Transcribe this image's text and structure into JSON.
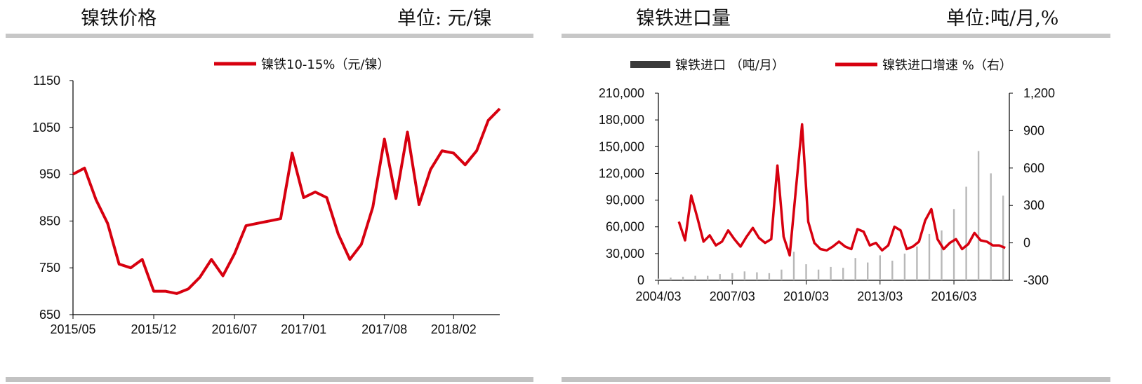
{
  "left": {
    "title": "镍铁价格",
    "unit": "单位:  元/镍"
  },
  "right": {
    "title": "镍铁进口量",
    "unit": "单位:吨/月,%"
  },
  "colors": {
    "red": "#d7000f",
    "bar": "#b8b8b8",
    "legend_bar": "#3a3a3a",
    "rule": "#c7c7c7"
  },
  "chart_data": [
    {
      "type": "line",
      "title": "",
      "legend": [
        "镍铁10-15%（元/镍）"
      ],
      "ylim": [
        650,
        1150
      ],
      "yticks": [
        "650",
        "750",
        "850",
        "950",
        "1050",
        "1150"
      ],
      "xticks": [
        "2015/05",
        "2015/12",
        "2016/07",
        "2017/01",
        "2017/08",
        "2018/02"
      ],
      "series": [
        {
          "name": "镍铁10-15%（元/镍）",
          "x": [
            "2015/05",
            "2015/06",
            "2015/07",
            "2015/08",
            "2015/09",
            "2015/10",
            "2015/11",
            "2015/12",
            "2016/01",
            "2016/02",
            "2016/03",
            "2016/04",
            "2016/05",
            "2016/06",
            "2016/07",
            "2016/08",
            "2016/09",
            "2016/10",
            "2016/11",
            "2016/12",
            "2017/01",
            "2017/02",
            "2017/03",
            "2017/04",
            "2017/05",
            "2017/06",
            "2017/07",
            "2017/08",
            "2017/09",
            "2017/10",
            "2017/11",
            "2017/12",
            "2018/01",
            "2018/02",
            "2018/03",
            "2018/04",
            "2018/05",
            "2018/06"
          ],
          "values": [
            950,
            963,
            895,
            845,
            758,
            750,
            768,
            700,
            700,
            695,
            705,
            730,
            768,
            733,
            780,
            840,
            845,
            850,
            855,
            995,
            900,
            912,
            900,
            822,
            768,
            800,
            880,
            1025,
            898,
            1040,
            885,
            960,
            1000,
            995,
            970,
            1000,
            1065,
            1090
          ]
        }
      ]
    },
    {
      "type": "bar+line",
      "title": "",
      "legend": [
        "镍铁进口 （吨/月）",
        "镍铁进口增速 %（右）"
      ],
      "ylim_left": [
        0,
        210000
      ],
      "ylim_right": [
        -300,
        1200
      ],
      "yticks_left": [
        "0",
        "30,000",
        "60,000",
        "90,000",
        "120,000",
        "150,000",
        "180,000",
        "210,000"
      ],
      "yticks_right": [
        "-300",
        "0",
        "300",
        "600",
        "900",
        "1,200"
      ],
      "xticks": [
        "2004/03",
        "2007/03",
        "2010/03",
        "2013/03",
        "2016/03"
      ],
      "series": [
        {
          "name": "镍铁进口 （吨/月）",
          "type": "bar",
          "x": [
            "2004/03",
            "2004/09",
            "2005/03",
            "2005/09",
            "2006/03",
            "2006/09",
            "2007/03",
            "2007/09",
            "2008/03",
            "2008/09",
            "2009/03",
            "2009/09",
            "2010/03",
            "2010/09",
            "2011/03",
            "2011/09",
            "2012/03",
            "2012/09",
            "2013/03",
            "2013/09",
            "2014/03",
            "2014/09",
            "2015/03",
            "2015/09",
            "2016/03",
            "2016/09",
            "2017/03",
            "2017/09",
            "2018/03"
          ],
          "values": [
            2000,
            3000,
            4000,
            5000,
            5000,
            7000,
            8000,
            10000,
            9000,
            8000,
            12000,
            32000,
            18000,
            12000,
            15000,
            14000,
            25000,
            20000,
            28000,
            22000,
            30000,
            38000,
            52000,
            56000,
            80000,
            105000,
            145000,
            120000,
            95000
          ]
        },
        {
          "name": "镍铁进口增速 %（右）",
          "type": "line",
          "axis": "right",
          "x": [
            "2005/01",
            "2005/04",
            "2005/07",
            "2005/10",
            "2006/01",
            "2006/04",
            "2006/07",
            "2006/10",
            "2007/01",
            "2007/04",
            "2007/07",
            "2007/10",
            "2008/01",
            "2008/04",
            "2008/07",
            "2008/10",
            "2009/01",
            "2009/04",
            "2009/07",
            "2009/10",
            "2010/01",
            "2010/04",
            "2010/07",
            "2010/10",
            "2011/01",
            "2011/04",
            "2011/07",
            "2011/10",
            "2012/01",
            "2012/04",
            "2012/07",
            "2012/10",
            "2013/01",
            "2013/04",
            "2013/07",
            "2013/10",
            "2014/01",
            "2014/04",
            "2014/07",
            "2014/10",
            "2015/01",
            "2015/04",
            "2015/07",
            "2015/10",
            "2016/01",
            "2016/04",
            "2016/07",
            "2016/10",
            "2017/01",
            "2017/04",
            "2017/07",
            "2017/10",
            "2018/01",
            "2018/04"
          ],
          "values": [
            170,
            20,
            380,
            200,
            10,
            60,
            -20,
            10,
            100,
            30,
            -30,
            50,
            120,
            40,
            0,
            30,
            620,
            50,
            -100,
            430,
            950,
            170,
            0,
            -50,
            -60,
            -30,
            10,
            -30,
            -50,
            110,
            90,
            -20,
            0,
            -60,
            -20,
            130,
            100,
            -50,
            -30,
            10,
            180,
            270,
            30,
            -50,
            0,
            30,
            -50,
            -10,
            80,
            20,
            10,
            -20,
            -20,
            -40
          ]
        }
      ]
    }
  ]
}
